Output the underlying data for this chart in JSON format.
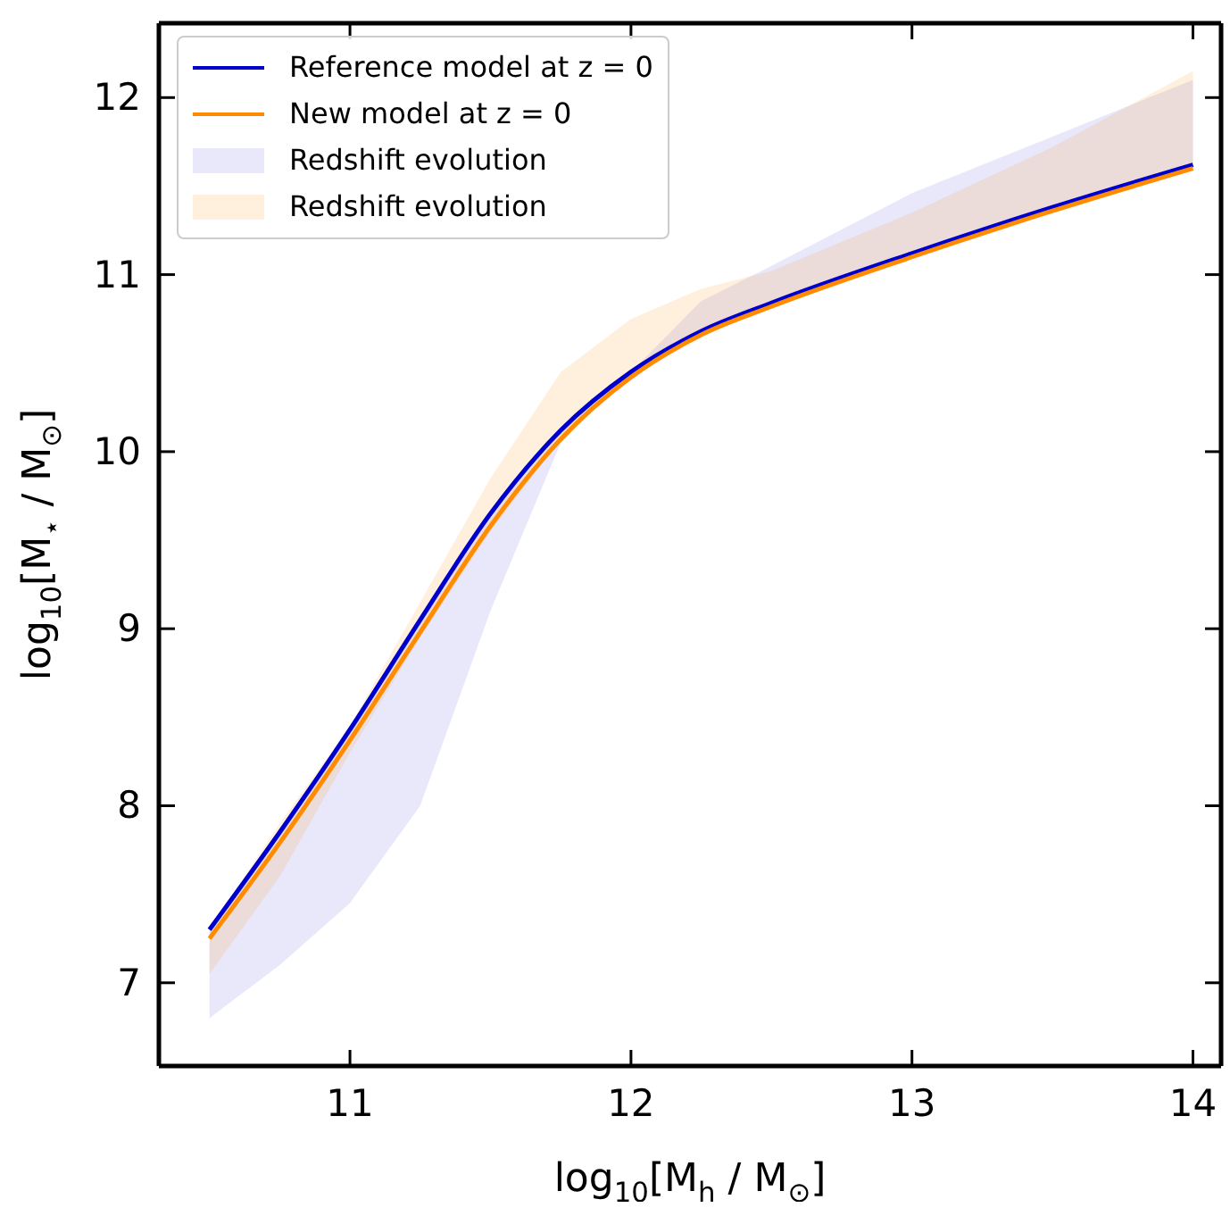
{
  "chart_data": {
    "type": "line",
    "xlabel": "log$_{10}$[M$_{h}$ / M$_{⊙}$]",
    "ylabel": "log$_{10}$[M$_{⋆}$ / M$_{⊙}$]",
    "x": [
      10.5,
      10.75,
      11,
      11.25,
      11.5,
      11.75,
      12,
      12.25,
      12.5,
      13,
      13.5,
      14
    ],
    "series": [
      {
        "type": "line",
        "name": "Reference model at z = 0",
        "color": "#0000cd",
        "values": [
          7.3,
          7.85,
          8.43,
          9.05,
          9.65,
          10.12,
          10.45,
          10.68,
          10.84,
          11.12,
          11.38,
          11.62
        ],
        "lower": [
          6.8,
          7.1,
          7.45,
          8.0,
          9.1,
          10.05,
          10.45,
          10.68,
          10.84,
          11.12,
          11.38,
          11.62
        ],
        "upper": [
          7.3,
          7.85,
          8.43,
          9.05,
          9.65,
          10.12,
          10.45,
          10.85,
          11.05,
          11.46,
          11.78,
          12.1
        ]
      },
      {
        "type": "line",
        "name": "New model at z = 0",
        "color": "#ff8c00",
        "values": [
          7.25,
          7.79,
          8.37,
          8.98,
          9.58,
          10.07,
          10.42,
          10.66,
          10.82,
          11.1,
          11.36,
          11.6
        ],
        "lower": [
          7.05,
          7.6,
          8.3,
          8.95,
          9.55,
          10.07,
          10.42,
          10.66,
          10.82,
          11.1,
          11.36,
          11.6
        ],
        "upper": [
          7.3,
          7.9,
          8.45,
          9.15,
          9.85,
          10.45,
          10.75,
          10.92,
          11.02,
          11.35,
          11.72,
          12.15
        ]
      }
    ],
    "annotations": [
      "Redshift evolution",
      "Redshift evolution"
    ],
    "xlim": [
      10.32,
      14.1
    ],
    "ylim": [
      6.53,
      12.42
    ],
    "xticks": [
      11,
      12,
      13,
      14
    ],
    "yticks": [
      7,
      8,
      9,
      10,
      11,
      12
    ],
    "legend": "top left"
  }
}
